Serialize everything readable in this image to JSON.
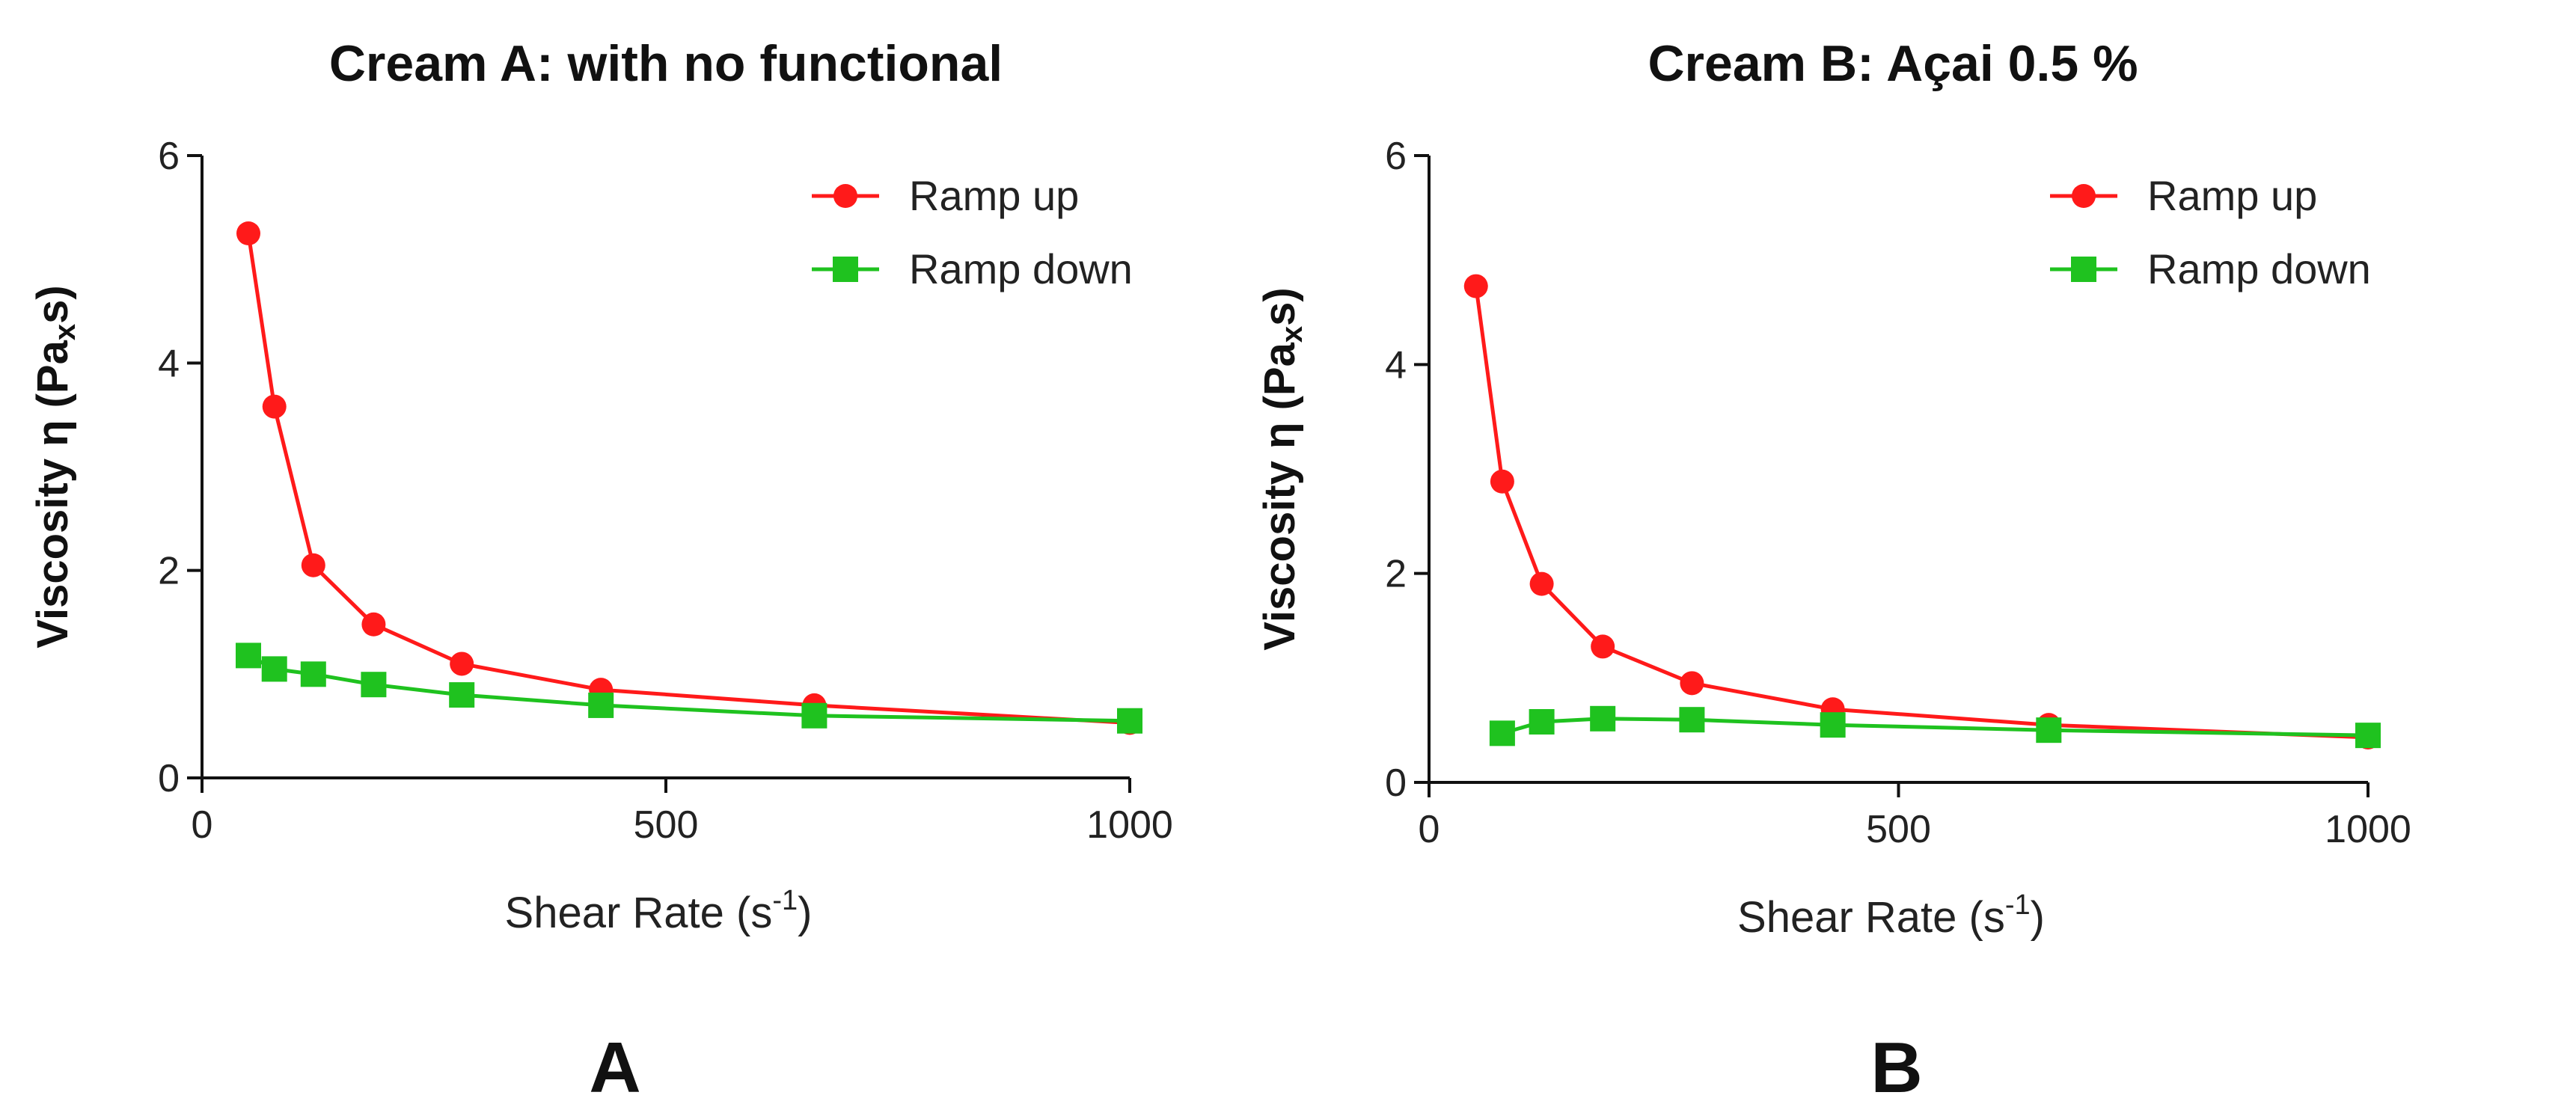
{
  "chart_data": [
    {
      "type": "line",
      "title": "Cream A: with no functional",
      "xlabel": "Shear Rate (s",
      "xlabel_sup": "-1",
      "xlabel_end": ")",
      "ylabel": "Viscosity η (Pa",
      "ylabel_sub": "x",
      "ylabel_end": "s)",
      "xlim": [
        0,
        1000
      ],
      "ylim": [
        0,
        6
      ],
      "xticks": [
        "0",
        "500",
        "1000"
      ],
      "yticks": [
        "0",
        "2",
        "4",
        "6"
      ],
      "legend_position": "top-right",
      "panel_label": "A",
      "series": [
        {
          "name": "Ramp up",
          "color": "#ff1a1a",
          "marker": "circle",
          "x": [
            50,
            78,
            120,
            185,
            280,
            430,
            660,
            1000
          ],
          "y": [
            5.25,
            3.58,
            2.05,
            1.48,
            1.1,
            0.85,
            0.7,
            0.53
          ]
        },
        {
          "name": "Ramp down",
          "color": "#1fc21f",
          "marker": "square",
          "x": [
            50,
            78,
            120,
            185,
            280,
            430,
            660,
            1000
          ],
          "y": [
            1.18,
            1.05,
            1.0,
            0.9,
            0.8,
            0.7,
            0.6,
            0.55
          ]
        }
      ]
    },
    {
      "type": "line",
      "title": "Cream B: Açai 0.5 %",
      "xlabel": "Shear Rate (s",
      "xlabel_sup": "-1",
      "xlabel_end": ")",
      "ylabel": "Viscosity η (Pa",
      "ylabel_sub": "x",
      "ylabel_end": "s)",
      "xlim": [
        0,
        1000
      ],
      "ylim": [
        0,
        6
      ],
      "xticks": [
        "0",
        "500",
        "1000"
      ],
      "yticks": [
        "0",
        "2",
        "4",
        "6"
      ],
      "legend_position": "top-right",
      "panel_label": "B",
      "series": [
        {
          "name": "Ramp up",
          "color": "#ff1a1a",
          "marker": "circle",
          "x": [
            50,
            78,
            120,
            185,
            280,
            430,
            660,
            1000
          ],
          "y": [
            4.75,
            2.88,
            1.9,
            1.3,
            0.95,
            0.7,
            0.55,
            0.43
          ]
        },
        {
          "name": "Ramp down",
          "color": "#1fc21f",
          "marker": "square",
          "x": [
            78,
            120,
            185,
            280,
            430,
            660,
            1000
          ],
          "y": [
            0.47,
            0.58,
            0.61,
            0.6,
            0.55,
            0.5,
            0.45
          ]
        }
      ]
    }
  ]
}
